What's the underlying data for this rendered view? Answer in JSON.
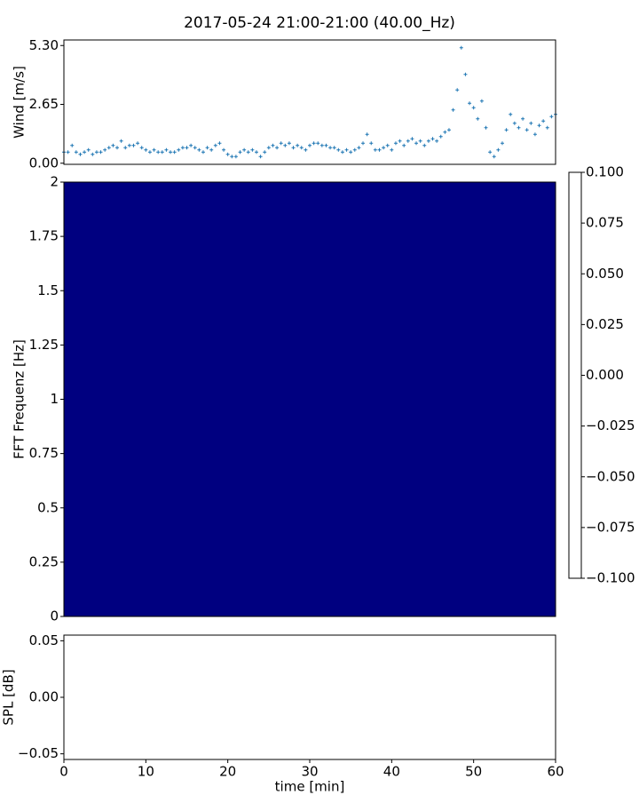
{
  "chart_data": [
    {
      "type": "scatter",
      "title": "2017-05-24 21:00-21:00 (40.00_Hz)",
      "ylabel": "Wind [m/s]",
      "color": "#1f77b4",
      "marker": "plus",
      "xlim": [
        0,
        60
      ],
      "ylim": [
        -0.05,
        5.55
      ],
      "yticks": [
        {
          "value": 0,
          "label": "0.00"
        },
        {
          "value": 2.65,
          "label": "2.65"
        },
        {
          "value": 5.3,
          "label": "5.30"
        }
      ],
      "x": [
        0,
        0.5,
        1,
        1.5,
        2,
        2.5,
        3,
        3.5,
        4,
        4.5,
        5,
        5.5,
        6,
        6.5,
        7,
        7.5,
        8,
        8.5,
        9,
        9.5,
        10,
        10.5,
        11,
        11.5,
        12,
        12.5,
        13,
        13.5,
        14,
        14.5,
        15,
        15.5,
        16,
        16.5,
        17,
        17.5,
        18,
        18.5,
        19,
        19.5,
        20,
        20.5,
        21,
        21.5,
        22,
        22.5,
        23,
        23.5,
        24,
        24.5,
        25,
        25.5,
        26,
        26.5,
        27,
        27.5,
        28,
        28.5,
        29,
        29.5,
        30,
        30.5,
        31,
        31.5,
        32,
        32.5,
        33,
        33.5,
        34,
        34.5,
        35,
        35.5,
        36,
        36.5,
        37,
        37.5,
        38,
        38.5,
        39,
        39.5,
        40,
        40.5,
        41,
        41.5,
        42,
        42.5,
        43,
        43.5,
        44,
        44.5,
        45,
        45.5,
        46,
        46.5,
        47,
        47.5,
        48,
        48.5,
        49,
        49.5,
        50,
        50.5,
        51,
        51.5,
        52,
        52.5,
        53,
        53.5,
        54,
        54.5,
        55,
        55.5,
        56,
        56.5,
        57,
        57.5,
        58,
        58.5,
        59,
        59.5,
        60
      ],
      "values": [
        0.5,
        0.5,
        0.8,
        0.5,
        0.4,
        0.5,
        0.6,
        0.4,
        0.5,
        0.5,
        0.6,
        0.7,
        0.8,
        0.7,
        1.0,
        0.7,
        0.8,
        0.8,
        0.9,
        0.7,
        0.6,
        0.5,
        0.6,
        0.5,
        0.5,
        0.6,
        0.5,
        0.5,
        0.6,
        0.7,
        0.7,
        0.8,
        0.7,
        0.6,
        0.5,
        0.7,
        0.6,
        0.8,
        0.9,
        0.6,
        0.4,
        0.3,
        0.3,
        0.5,
        0.6,
        0.5,
        0.6,
        0.5,
        0.3,
        0.5,
        0.7,
        0.8,
        0.7,
        0.9,
        0.8,
        0.9,
        0.7,
        0.8,
        0.7,
        0.6,
        0.8,
        0.9,
        0.9,
        0.8,
        0.8,
        0.7,
        0.7,
        0.6,
        0.5,
        0.6,
        0.5,
        0.6,
        0.7,
        0.9,
        1.3,
        0.9,
        0.6,
        0.6,
        0.7,
        0.8,
        0.6,
        0.9,
        1.0,
        0.8,
        1.0,
        1.1,
        0.9,
        1.0,
        0.8,
        1.0,
        1.1,
        1.0,
        1.2,
        1.4,
        1.5,
        2.4,
        3.3,
        5.2,
        4.0,
        2.7,
        2.5,
        2.0,
        2.8,
        1.6,
        0.5,
        0.3,
        0.6,
        0.9,
        1.5,
        2.2,
        1.8,
        1.6,
        2.0,
        1.5,
        1.8,
        1.3,
        1.7,
        1.9,
        1.6,
        2.1,
        2.2
      ]
    },
    {
      "type": "heatmap",
      "ylabel": "FFT Frequenz [Hz]",
      "colormap": "jet",
      "xlim": [
        0,
        60
      ],
      "ylim": [
        0,
        2
      ],
      "yticks": [
        0,
        0.25,
        0.5,
        0.75,
        1,
        1.25,
        1.5,
        1.75,
        2
      ],
      "values": [
        [
          -0.1
        ]
      ],
      "zlim": [
        -0.1,
        0.1
      ],
      "zticks": [
        {
          "value": 0.1,
          "label": "0.100"
        },
        {
          "value": 0.075,
          "label": "0.075"
        },
        {
          "value": 0.05,
          "label": "0.050"
        },
        {
          "value": 0.025,
          "label": "0.025"
        },
        {
          "value": 0,
          "label": "0.000"
        },
        {
          "value": -0.025,
          "label": "−0.025"
        },
        {
          "value": -0.05,
          "label": "−0.050"
        },
        {
          "value": -0.075,
          "label": "−0.075"
        },
        {
          "value": -0.1,
          "label": "−0.100"
        }
      ]
    },
    {
      "type": "line",
      "ylabel": "SPL [dB]",
      "xlabel": "time [min]",
      "xlim": [
        0,
        60
      ],
      "ylim": [
        -0.055,
        0.055
      ],
      "xticks": [
        0,
        10,
        20,
        30,
        40,
        50,
        60
      ],
      "yticks": [
        {
          "value": -0.05,
          "label": "−0.05"
        },
        {
          "value": 0,
          "label": "0.00"
        },
        {
          "value": 0.05,
          "label": "0.05"
        }
      ],
      "values": []
    }
  ]
}
